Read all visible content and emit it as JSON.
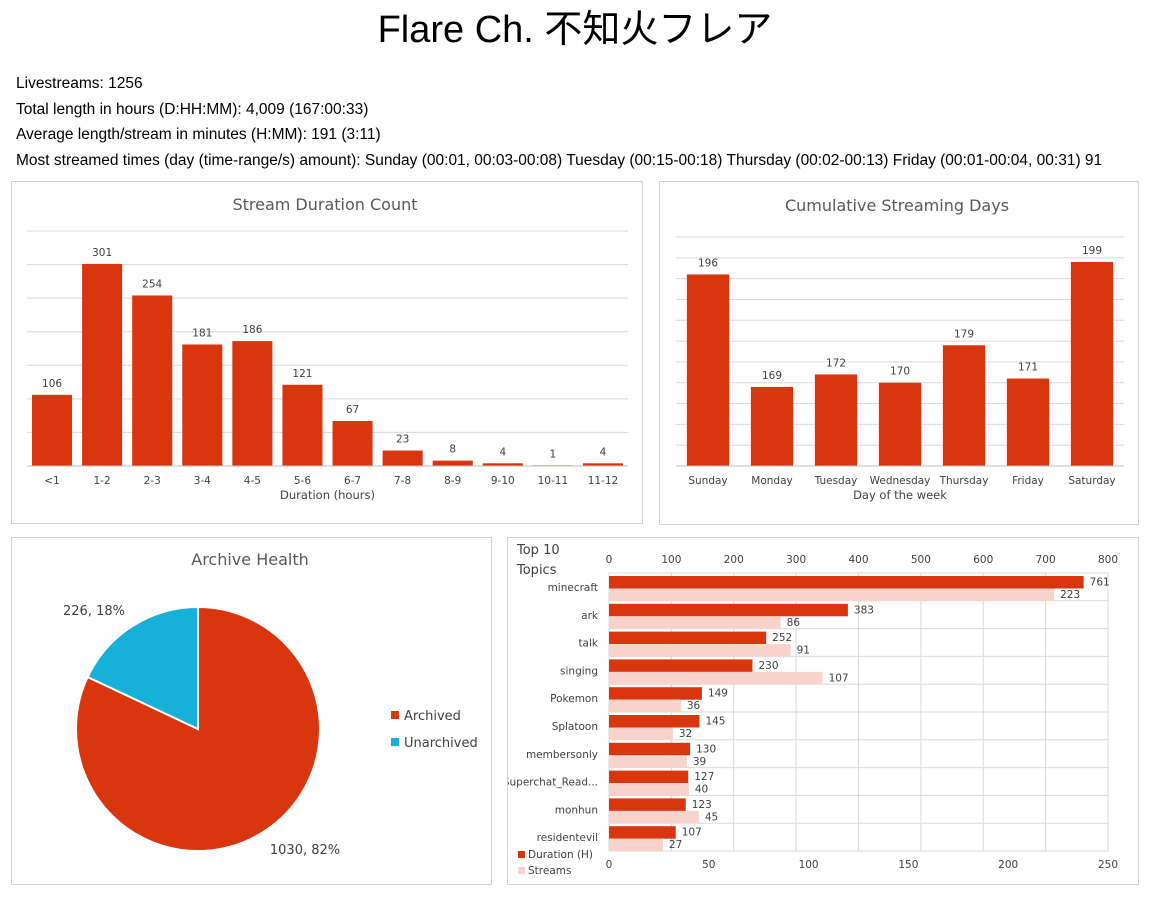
{
  "page": {
    "title": "Flare Ch. 不知火フレア",
    "stats": [
      "Livestreams: 1256",
      "Total length in hours (D:HH:MM): 4,009 (167:00:33)",
      "Average length/stream in minutes (H:MM): 191 (3:11)",
      "Most streamed times (day (time-range/s) amount): Sunday (00:01, 00:03-00:08) Tuesday (00:15-00:18) Thursday (00:02-00:13) Friday (00:01-00:04, 00:31) 91"
    ]
  },
  "colors": {
    "primary": "#d9360f",
    "secondary": "#f8d3cb",
    "unarchived": "#17b0d9"
  },
  "chart_data": [
    {
      "type": "bar",
      "title": "Stream Duration Count",
      "xlabel": "Duration (hours)",
      "ylabel": "",
      "categories": [
        "<1",
        "1-2",
        "2-3",
        "3-4",
        "4-5",
        "5-6",
        "6-7",
        "7-8",
        "8-9",
        "9-10",
        "10-11",
        "11-12"
      ],
      "values": [
        106,
        301,
        254,
        181,
        186,
        121,
        67,
        23,
        8,
        4,
        1,
        4
      ],
      "ylim": [
        0,
        350
      ],
      "grid": true
    },
    {
      "type": "bar",
      "title": "Cumulative Streaming Days",
      "xlabel": "Day of the week",
      "ylabel": "",
      "categories": [
        "Sunday",
        "Monday",
        "Tuesday",
        "Wednesday",
        "Thursday",
        "Friday",
        "Saturday"
      ],
      "values": [
        196,
        169,
        172,
        170,
        179,
        171,
        199
      ],
      "ylim": [
        150,
        205
      ],
      "grid": true
    },
    {
      "type": "pie",
      "title": "Archive Health",
      "labels": [
        "Archived",
        "Unarchived"
      ],
      "values": [
        1030,
        226
      ],
      "slice_labels": [
        "1030, 82%",
        "226, 18%"
      ],
      "legend": "right"
    },
    {
      "type": "bar",
      "orientation": "horizontal",
      "title": "Top 10 Topics",
      "categories": [
        "minecraft",
        "ark",
        "talk",
        "singing",
        "Pokemon",
        "Splatoon",
        "membersonly",
        "Superchat_Read...",
        "monhun",
        "residentevil"
      ],
      "series": [
        {
          "name": "Duration (H)",
          "values": [
            761,
            383,
            252,
            230,
            149,
            145,
            130,
            127,
            123,
            107
          ],
          "axis": "top",
          "xlim": [
            0,
            800
          ]
        },
        {
          "name": "Streams",
          "values": [
            223,
            86,
            91,
            107,
            36,
            32,
            39,
            40,
            45,
            27
          ],
          "axis": "bottom",
          "xlim": [
            0,
            250
          ]
        }
      ],
      "top_ticks": [
        "0",
        "100",
        "200",
        "300",
        "400",
        "500",
        "600",
        "700",
        "800"
      ],
      "bottom_ticks": [
        "0",
        "50",
        "100",
        "150",
        "200",
        "250"
      ],
      "legend": "bottom-left",
      "grid": true
    }
  ]
}
